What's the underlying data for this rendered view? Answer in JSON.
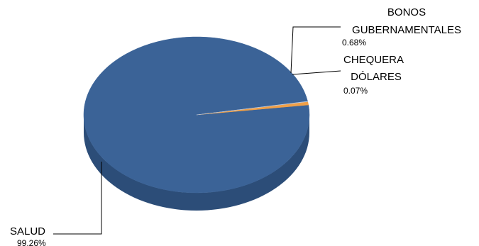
{
  "chart_data": {
    "type": "pie",
    "style": "3d",
    "series": [
      {
        "categories": [
          "SALUD",
          "BONOS GUBERNAMENTALES",
          "CHEQUERA DÓLARES"
        ],
        "name_lines": [
          [
            "SALUD"
          ],
          [
            "BONOS",
            "GUBERNAMENTALES"
          ],
          [
            "CHEQUERA",
            "DÓLARES"
          ]
        ],
        "values": [
          99.26,
          0.68,
          0.07
        ],
        "value_labels": [
          "99.26%",
          "0.68%",
          "0.07%"
        ],
        "colors": [
          "#3B6397",
          "#F0A048",
          "#B7CBE6"
        ]
      }
    ],
    "side_colors": [
      "#2C4D78",
      "#B7762F",
      "#8FA6C4"
    ]
  }
}
